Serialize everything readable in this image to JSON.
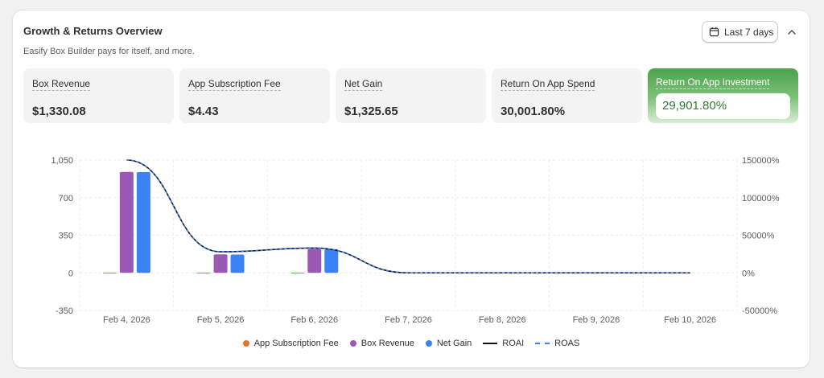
{
  "header": {
    "title": "Growth & Returns Overview",
    "subtitle": "Easify Box Builder pays for itself, and more.",
    "date_range": "Last 7 days"
  },
  "metrics": [
    {
      "label": "Box Revenue",
      "value": "$1,330.08"
    },
    {
      "label": "App Subscription Fee",
      "value": "$4.43"
    },
    {
      "label": "Net Gain",
      "value": "$1,325.65"
    },
    {
      "label": "Return On App Spend",
      "value": "30,001.80%"
    },
    {
      "label": "Return On App Investment",
      "value": "29,901.80%"
    }
  ],
  "legend": [
    {
      "label": "App Subscription Fee",
      "color": "#e8702a",
      "kind": "dot"
    },
    {
      "label": "Box Revenue",
      "color": "#9b59b6",
      "kind": "dot"
    },
    {
      "label": "Net Gain",
      "color": "#3b82f6",
      "kind": "dot"
    },
    {
      "label": "ROAI",
      "color": "#111111",
      "kind": "line"
    },
    {
      "label": "ROAS",
      "color": "#3b82f6",
      "kind": "dashed"
    }
  ],
  "chart_data": {
    "type": "bar",
    "categories": [
      "Feb 4, 2026",
      "Feb 5, 2026",
      "Feb 6, 2026",
      "Feb 7, 2026",
      "Feb 8, 2026",
      "Feb 9, 2026",
      "Feb 10, 2026"
    ],
    "left_axis": {
      "ticks": [
        "1,050",
        "700",
        "350",
        "0",
        "-350"
      ],
      "min": -350,
      "max": 1050
    },
    "right_axis": {
      "ticks": [
        "150000%",
        "100000%",
        "50000%",
        "0%",
        "-50000%"
      ],
      "min": -50000,
      "max": 150000
    },
    "series": [
      {
        "name": "App Subscription Fee",
        "axis": "left",
        "values": [
          1.5,
          1.5,
          1.5,
          0,
          0,
          0,
          0
        ],
        "color": "#e8702a"
      },
      {
        "name": "Box Revenue",
        "axis": "left",
        "values": [
          940,
          172,
          222,
          0,
          0,
          0,
          0
        ],
        "color": "#9b59b6"
      },
      {
        "name": "Net Gain",
        "axis": "left",
        "values": [
          938,
          170,
          220,
          0,
          0,
          0,
          0
        ],
        "color": "#3b82f6"
      },
      {
        "name": "ROAI",
        "axis": "right",
        "values": [
          150000,
          28000,
          33000,
          0,
          0,
          0,
          0
        ],
        "color": "#111111"
      },
      {
        "name": "ROAS",
        "axis": "right",
        "values": [
          150000,
          28000,
          33000,
          0,
          0,
          0,
          0
        ],
        "color": "#3b82f6"
      }
    ],
    "grid": true,
    "legend_position": "bottom"
  }
}
